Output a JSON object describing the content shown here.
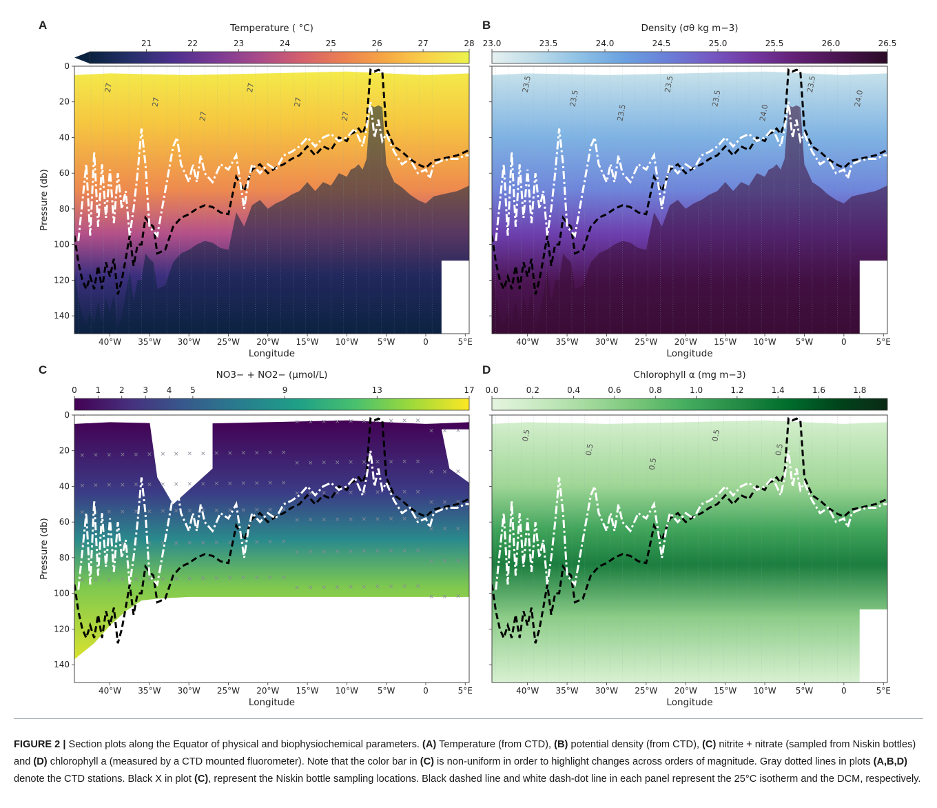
{
  "panels": [
    {
      "letter": "A",
      "colorbar": {
        "label": "Temperature ( °C)",
        "ticks": [
          "21",
          "22",
          "23",
          "24",
          "25",
          "26",
          "27",
          "28"
        ],
        "colormap": "thermal",
        "extend": "min"
      },
      "ylabel": "Pressure (db)",
      "xlabel": "Longitude",
      "contour_labels": [
        "27",
        "27",
        "27",
        "27",
        "27",
        "27"
      ]
    },
    {
      "letter": "B",
      "colorbar": {
        "label": "Density (σθ kg m−3)",
        "ticks": [
          "23.0",
          "23.5",
          "24.0",
          "24.5",
          "25.0",
          "25.5",
          "26.0",
          "26.5"
        ],
        "colormap": "dense",
        "extend": "none"
      },
      "ylabel": "",
      "xlabel": "Longitude",
      "contour_labels": [
        "23.5",
        "23.5",
        "23.5",
        "23.5",
        "23.5",
        "24.0",
        "23.5",
        "24.0"
      ]
    },
    {
      "letter": "C",
      "colorbar": {
        "label": "NO3− + NO2− (μmol/L)",
        "ticks": [
          "0",
          "1",
          "2",
          "3",
          "4",
          "5",
          "9",
          "13",
          "17"
        ],
        "colormap": "viridis",
        "extend": "none"
      },
      "ylabel": "Pressure (db)",
      "xlabel": "Longitude",
      "contour_labels": []
    },
    {
      "letter": "D",
      "colorbar": {
        "label": "Chlorophyll α (mg m−3)",
        "ticks": [
          "0.0",
          "0.2",
          "0.4",
          "0.6",
          "0.8",
          "1.0",
          "1.2",
          "1.4",
          "1.6",
          "1.8"
        ],
        "colormap": "greens",
        "extend": "none"
      },
      "ylabel": "",
      "xlabel": "Longitude",
      "contour_labels": [
        "0.5",
        "0.5",
        "0.5",
        "0.5",
        "0.5"
      ]
    }
  ],
  "chart_data": {
    "type": "heatmap",
    "x_ticks": [
      "40°W",
      "35°W",
      "30°W",
      "25°W",
      "20°W",
      "15°W",
      "10°W",
      "5°W",
      "0",
      "5°E"
    ],
    "x_tick_values": [
      -40,
      -35,
      -30,
      -25,
      -20,
      -15,
      -10,
      -5,
      0,
      5
    ],
    "xlim": [
      -44.5,
      5.5
    ],
    "y_ticks": [
      "0",
      "20",
      "40",
      "60",
      "80",
      "100",
      "120",
      "140"
    ],
    "y_tick_values": [
      0,
      20,
      40,
      60,
      80,
      100,
      120,
      140
    ],
    "ylim": [
      150,
      0
    ],
    "isotherm_25C": {
      "x": [
        -44.5,
        -44,
        -43.5,
        -43,
        -42.5,
        -42,
        -41.5,
        -41,
        -40.5,
        -40,
        -39.5,
        -39,
        -38.5,
        -38,
        -37.5,
        -37,
        -36.5,
        -36,
        -35.5,
        -35,
        -34.5,
        -34,
        -33,
        -32,
        -31,
        -30,
        -29,
        -28,
        -27,
        -26,
        -25,
        -24,
        -23,
        -22,
        -21,
        -20,
        -19,
        -18,
        -17,
        -16,
        -15,
        -14,
        -13,
        -12,
        -11,
        -10,
        -9.5,
        -9,
        -8.5,
        -8,
        -7.5,
        -7,
        -6.5,
        -6,
        -5.5,
        -5,
        -4.5,
        -4,
        -3,
        -2,
        -1,
        0,
        0.5,
        1,
        2,
        3,
        4,
        5,
        5.5
      ],
      "y": [
        95,
        110,
        120,
        125,
        118,
        125,
        112,
        125,
        110,
        118,
        108,
        128,
        120,
        108,
        95,
        112,
        100,
        100,
        85,
        88,
        90,
        105,
        103,
        90,
        85,
        83,
        80,
        78,
        79,
        82,
        83,
        62,
        70,
        58,
        55,
        60,
        57,
        55,
        52,
        50,
        45,
        50,
        45,
        47,
        40,
        42,
        38,
        37,
        35,
        38,
        32,
        2,
        3,
        2,
        3,
        35,
        40,
        45,
        48,
        52,
        55,
        57,
        55,
        53,
        52,
        51,
        50,
        48,
        47
      ]
    },
    "dcm": {
      "x": [
        -44,
        -43,
        -42.5,
        -42,
        -41.5,
        -41,
        -40.5,
        -40,
        -39.5,
        -39,
        -38.5,
        -38,
        -37.5,
        -37,
        -36.5,
        -36,
        -35.5,
        -35,
        -34,
        -33,
        -32,
        -31.5,
        -31,
        -30,
        -29.5,
        -29,
        -28.5,
        -28,
        -27,
        -26,
        -25,
        -24,
        -23,
        -22.5,
        -22,
        -21,
        -20,
        -19,
        -18,
        -17,
        -16,
        -15,
        -14,
        -13,
        -12,
        -11,
        -10,
        -9,
        -8,
        -7.5,
        -7,
        -6.5,
        -6,
        -5.5,
        -5,
        -4,
        -3,
        -2,
        -1,
        0,
        0.5,
        1,
        2,
        3,
        4,
        5,
        5.5
      ],
      "y": [
        98,
        55,
        95,
        48,
        90,
        55,
        85,
        58,
        88,
        60,
        80,
        70,
        95,
        80,
        60,
        35,
        55,
        90,
        95,
        70,
        45,
        40,
        55,
        65,
        55,
        65,
        50,
        60,
        65,
        55,
        58,
        50,
        80,
        65,
        55,
        60,
        55,
        58,
        50,
        48,
        45,
        40,
        45,
        40,
        38,
        42,
        40,
        35,
        45,
        35,
        20,
        40,
        30,
        42,
        38,
        48,
        55,
        52,
        60,
        58,
        63,
        55,
        53,
        52,
        52,
        50,
        50
      ]
    }
  },
  "caption": {
    "label": "FIGURE 2 |",
    "text_1": " Section plots along the Equator of physical and biophysiochemical parameters. ",
    "ref_a": "(A)",
    "text_2": " Temperature (from CTD), ",
    "ref_b": "(B)",
    "text_3": " potential density (from CTD), ",
    "ref_c": "(C)",
    "text_4": " nitrite + nitrate (sampled from Niskin bottles) and ",
    "ref_d": "(D)",
    "text_5": " chlorophyll a (measured by a CTD mounted fluorometer). Note that the color bar in ",
    "ref_c2": "(C)",
    "text_6": " is non-uniform in order to highlight changes across orders of magnitude. Gray dotted lines in plots ",
    "ref_abd": "(A,B,D)",
    "text_7": " denote the CTD stations. Black X in plot ",
    "ref_c3": "(C)",
    "text_8": ", represent the Niskin bottle sampling locations. Black dashed line and white dash-dot line in each panel represent the 25°C isotherm and the DCM, respectively."
  }
}
